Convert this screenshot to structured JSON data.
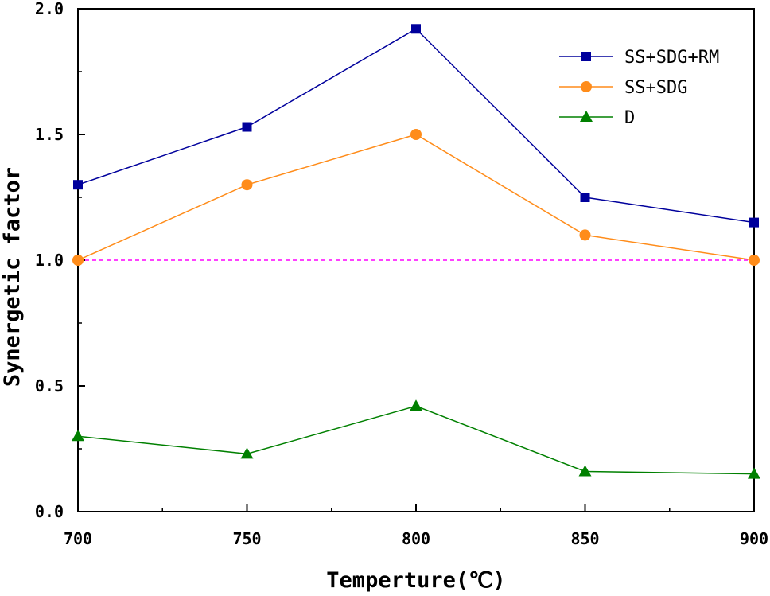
{
  "chart_data": {
    "type": "line",
    "title": "",
    "xlabel": "Temperture(℃)",
    "ylabel": "Synergetic factor",
    "xlim": [
      700,
      900
    ],
    "ylim": [
      0.0,
      2.0
    ],
    "x_ticks": [
      700,
      750,
      800,
      850,
      900
    ],
    "x_tick_labels": [
      "700",
      "750",
      "800",
      "850",
      "900"
    ],
    "y_ticks": [
      0.0,
      0.5,
      1.0,
      1.5,
      2.0
    ],
    "y_tick_labels": [
      "0.0",
      "0.5",
      "1.0",
      "1.5",
      "2.0"
    ],
    "x_minor_ticks": [
      725,
      775,
      825,
      875
    ],
    "y_minor_ticks": [
      0.25,
      0.75,
      1.25,
      1.75
    ],
    "grid": false,
    "legend_position": "top-right",
    "x": [
      700,
      750,
      800,
      850,
      900
    ],
    "series": [
      {
        "name": "SS+SDG+RM",
        "values": [
          1.3,
          1.53,
          1.92,
          1.25,
          1.15
        ],
        "color": "#00009c",
        "marker": "square"
      },
      {
        "name": "SS+SDG",
        "values": [
          1.0,
          1.3,
          1.5,
          1.1,
          1.0
        ],
        "color": "#ff8c1a",
        "marker": "circle"
      },
      {
        "name": "D",
        "values": [
          0.3,
          0.23,
          0.42,
          0.16,
          0.15
        ],
        "color": "#008000",
        "marker": "triangle"
      }
    ],
    "reference_line": {
      "y": 1.0,
      "color": "#ff00ff",
      "style": "dashed"
    }
  }
}
